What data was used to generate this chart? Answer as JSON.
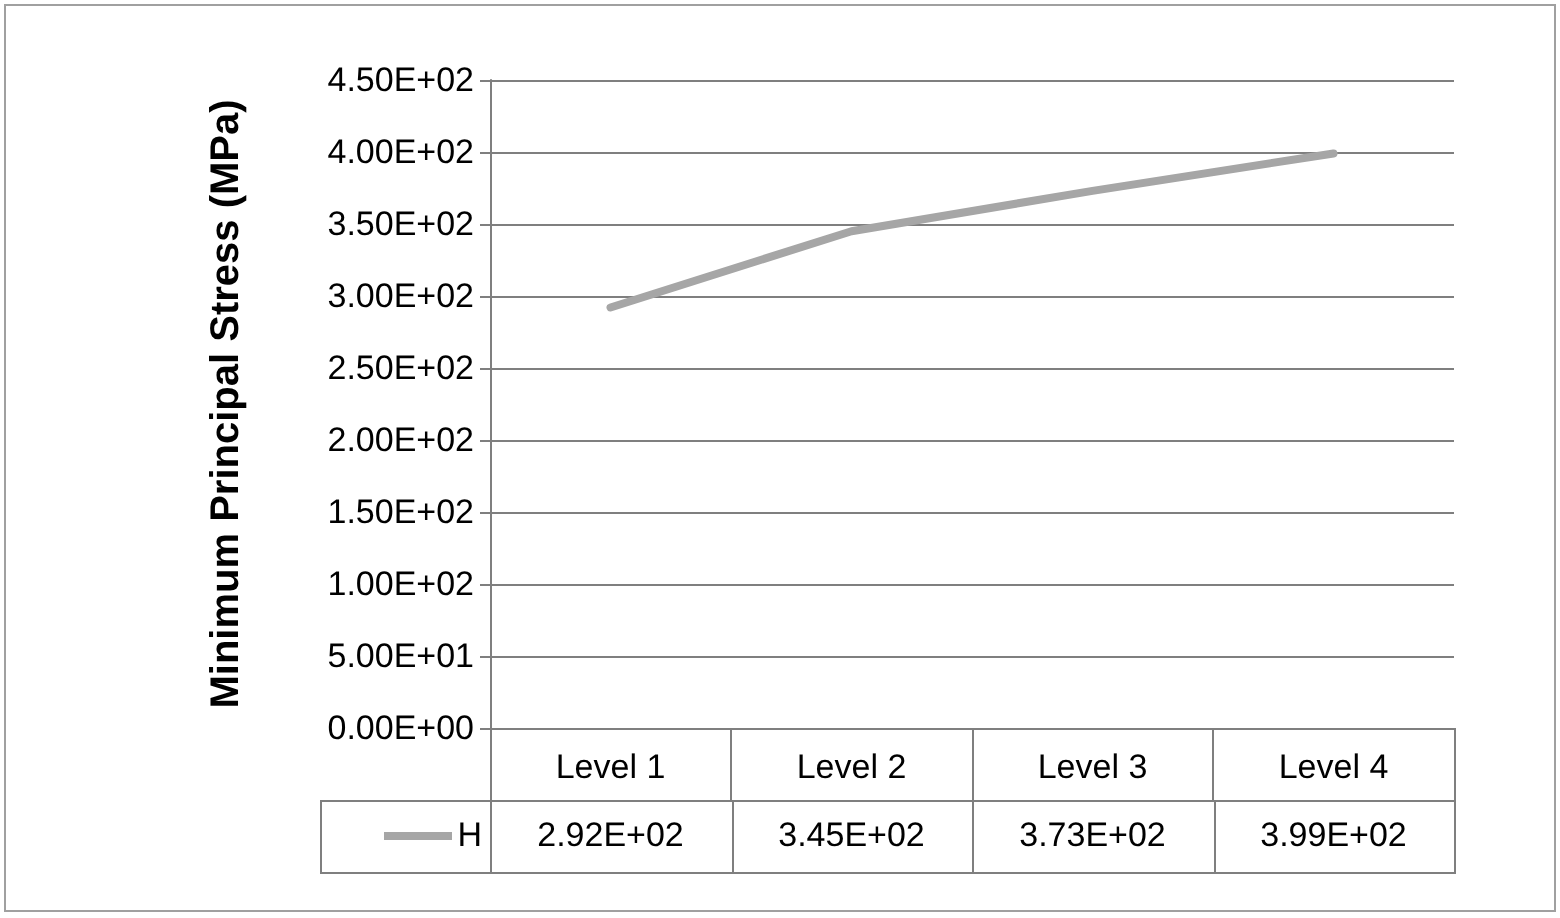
{
  "chart_data": {
    "type": "line",
    "ylabel": "Minimum Principal Stress (MPa)",
    "categories": [
      "Level 1",
      "Level 2",
      "Level 3",
      "Level 4"
    ],
    "series": [
      {
        "name": "H",
        "color": "#a6a6a6",
        "values": [
          292,
          345,
          373,
          399
        ],
        "value_labels": [
          "2.92E+02",
          "3.45E+02",
          "3.73E+02",
          "3.99E+02"
        ]
      }
    ],
    "ylim": [
      0,
      450
    ],
    "yticks": [
      {
        "value": 0,
        "label": "0.00E+00"
      },
      {
        "value": 50,
        "label": "5.00E+01"
      },
      {
        "value": 100,
        "label": "1.00E+02"
      },
      {
        "value": 150,
        "label": "1.50E+02"
      },
      {
        "value": 200,
        "label": "2.00E+02"
      },
      {
        "value": 250,
        "label": "2.50E+02"
      },
      {
        "value": 300,
        "label": "3.00E+02"
      },
      {
        "value": 350,
        "label": "3.50E+02"
      },
      {
        "value": 400,
        "label": "4.00E+02"
      },
      {
        "value": 450,
        "label": "4.50E+02"
      }
    ],
    "grid": "y",
    "legend": "bottom",
    "marker": "none",
    "line_style": "solid"
  }
}
